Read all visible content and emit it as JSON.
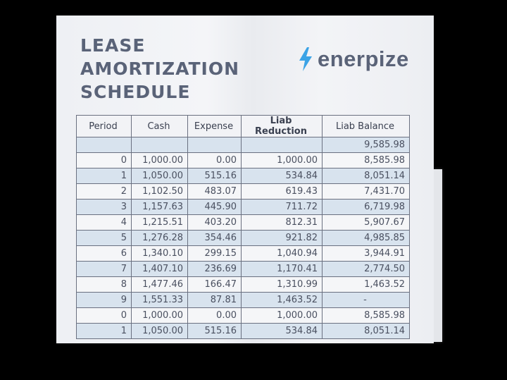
{
  "title_lines": [
    "LEASE",
    "AMORTIZATION",
    "SCHEDULE"
  ],
  "logo": {
    "text": "enerpize",
    "icon": "lightning-bolt-icon",
    "icon_color": "#3ba3e6"
  },
  "table": {
    "headers": [
      "Period",
      "Cash",
      "Expense",
      "Liab Reduction",
      "Liab Balance"
    ],
    "rows": [
      [
        "",
        "",
        "",
        "",
        "9,585.98"
      ],
      [
        "0",
        "1,000.00",
        "0.00",
        "1,000.00",
        "8,585.98"
      ],
      [
        "1",
        "1,050.00",
        "515.16",
        "534.84",
        "8,051.14"
      ],
      [
        "2",
        "1,102.50",
        "483.07",
        "619.43",
        "7,431.70"
      ],
      [
        "3",
        "1,157.63",
        "445.90",
        "711.72",
        "6,719.98"
      ],
      [
        "4",
        "1,215.51",
        "403.20",
        "812.31",
        "5,907.67"
      ],
      [
        "5",
        "1,276.28",
        "354.46",
        "921.82",
        "4,985.85"
      ],
      [
        "6",
        "1,340.10",
        "299.15",
        "1,040.94",
        "3,944.91"
      ],
      [
        "7",
        "1,407.10",
        "236.69",
        "1,170.41",
        "2,774.50"
      ],
      [
        "8",
        "1,477.46",
        "166.47",
        "1,310.99",
        "1,463.52"
      ],
      [
        "9",
        "1,551.33",
        "87.81",
        "1,463.52",
        "-"
      ],
      [
        "0",
        "1,000.00",
        "0.00",
        "1,000.00",
        "8,585.98"
      ],
      [
        "1",
        "1,050.00",
        "515.16",
        "534.84",
        "8,051.14"
      ]
    ]
  }
}
